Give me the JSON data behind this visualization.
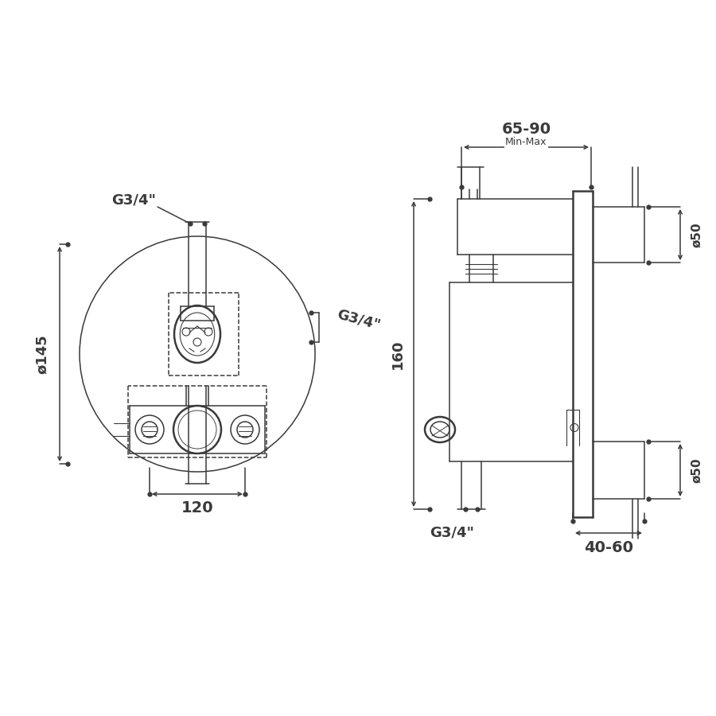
{
  "bg_color": "#ffffff",
  "line_color": "#3a3a3a",
  "lw": 1.1,
  "tlw": 1.8,
  "labels": {
    "g34_top_left": "G3/4\"",
    "g34_right_left": "G3/4\"",
    "diam145": "ø145",
    "w120": "120",
    "w6590": "65-90",
    "minmax": "Min-Max",
    "h160": "160",
    "g34_right": "G3/4\"",
    "d50_top": "ø50",
    "d50_bot": "ø50",
    "w4060": "40-60"
  }
}
